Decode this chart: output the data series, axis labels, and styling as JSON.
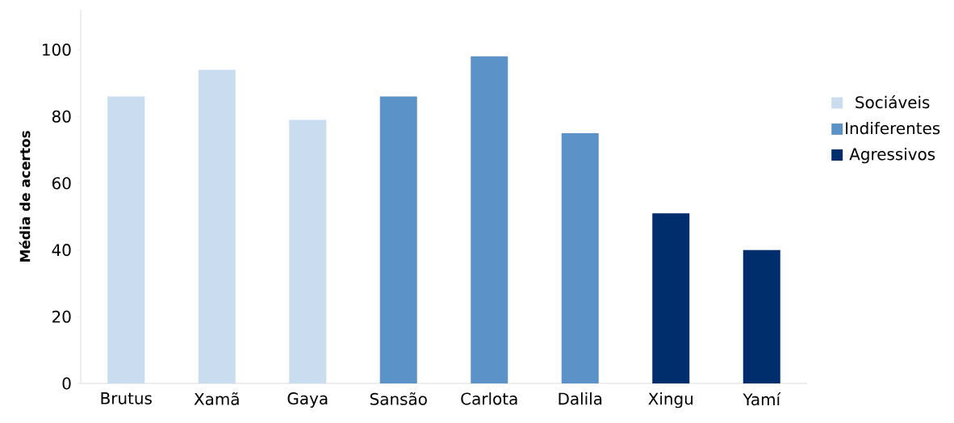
{
  "chart_data": {
    "type": "bar",
    "ylabel": "Média de acertos",
    "categories": [
      "Brutus",
      "Xamã",
      "Gaya",
      "Sansão",
      "Carlota",
      "Dalila",
      "Xingu",
      "Yamí"
    ],
    "series": [
      {
        "name": "Sociáveis",
        "color": "#c9dcf0",
        "values": [
          86,
          94,
          79,
          null,
          null,
          null,
          null,
          null
        ]
      },
      {
        "name": "Indiferentes",
        "color": "#5b93c8",
        "values": [
          null,
          null,
          null,
          86,
          98,
          75,
          null,
          null
        ]
      },
      {
        "name": "Agressivos",
        "color": "#002d6b",
        "values": [
          null,
          null,
          null,
          null,
          null,
          null,
          51,
          40
        ]
      }
    ],
    "ylim": [
      0,
      112
    ],
    "yticks": [
      0,
      20,
      40,
      60,
      80,
      100
    ],
    "grid": false,
    "legend": "right"
  }
}
